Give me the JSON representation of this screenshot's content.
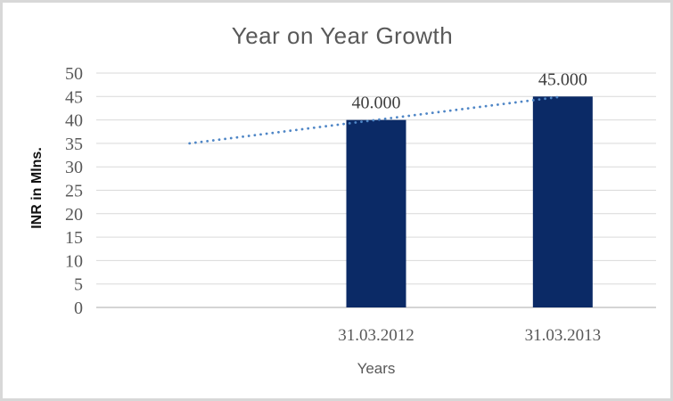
{
  "window": {
    "background": "#ffffff",
    "border_color": "#d8d8d8"
  },
  "chart_data": {
    "type": "bar",
    "title": "Year on Year Growth",
    "xlabel": "Years",
    "ylabel": "INR in Mlns.",
    "categories": [
      "31.03.2012",
      "31.03.2013"
    ],
    "series": [
      {
        "name": "INR in Mlns.",
        "values": [
          40,
          45
        ],
        "color": "#0b2a66"
      }
    ],
    "data_labels": [
      "40.000",
      "45.000"
    ],
    "ylim": [
      0,
      50
    ],
    "yticks": [
      0,
      5,
      10,
      15,
      20,
      25,
      30,
      35,
      40,
      45,
      50
    ],
    "grid": true,
    "legend": "none",
    "trendline": {
      "type": "linear",
      "style": "dotted",
      "color": "#4f86c6",
      "start_value": 35,
      "end_value": 45,
      "backward_periods": 1
    },
    "colors": {
      "grid": "#d9d9d9",
      "axis_line": "#c6c6c6",
      "title": "#595959",
      "tick_label": "#595959",
      "category_label": "#595959",
      "data_label": "#3d3d3d"
    }
  }
}
